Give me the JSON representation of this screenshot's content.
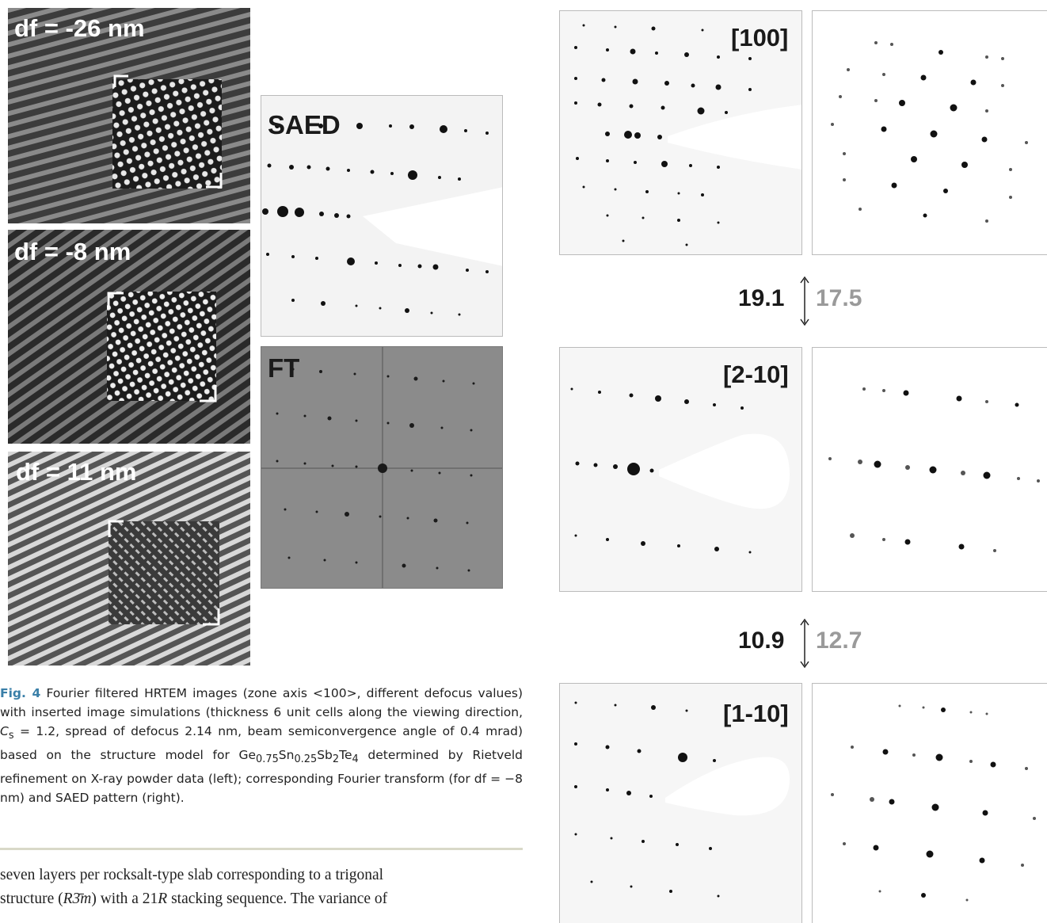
{
  "hrtem_panels": [
    {
      "label": "df = -26 nm"
    },
    {
      "label": "df = -8 nm"
    },
    {
      "label": "df = 11 nm"
    }
  ],
  "saed_label": "SAED",
  "ft_label": "FT",
  "zone_axes": [
    {
      "label": "[100]"
    },
    {
      "label": "[2-10]"
    },
    {
      "label": "[1-10]"
    }
  ],
  "ratios": [
    {
      "measured": "19.1",
      "simulated": "17.5"
    },
    {
      "measured": "10.9",
      "simulated": "12.7"
    }
  ],
  "caption": {
    "fig": "Fig. 4",
    "text_1": "Fourier filtered HRTEM images (zone axis <100>, different defocus values) with inserted image simulations (thickness 6 unit cells along the viewing direction, ",
    "cs": "C",
    "cs_sub": "s",
    "text_2": " = 1.2, spread of defocus 2.14 nm, beam semiconvergence angle of 0.4 mrad) based on the structure model for Ge",
    "sub1": "0.75",
    "sn": "Sn",
    "sub2": "0.25",
    "sb": "Sb",
    "sub3": "2",
    "te": "Te",
    "sub4": "4",
    "text_3": " determined by Rietveld refinement on X-ray powder data (left); corresponding Fourier transform (for df = −8 nm) and SAED pattern (right)."
  },
  "body_text": {
    "line1": "seven layers per rocksalt-type slab corresponding to a trigonal",
    "line2_a": "structure (",
    "line2_sym": "R3̄m",
    "line2_b": ") with a 21",
    "line2_r": "R",
    "line2_c": " stacking sequence. The variance of"
  }
}
